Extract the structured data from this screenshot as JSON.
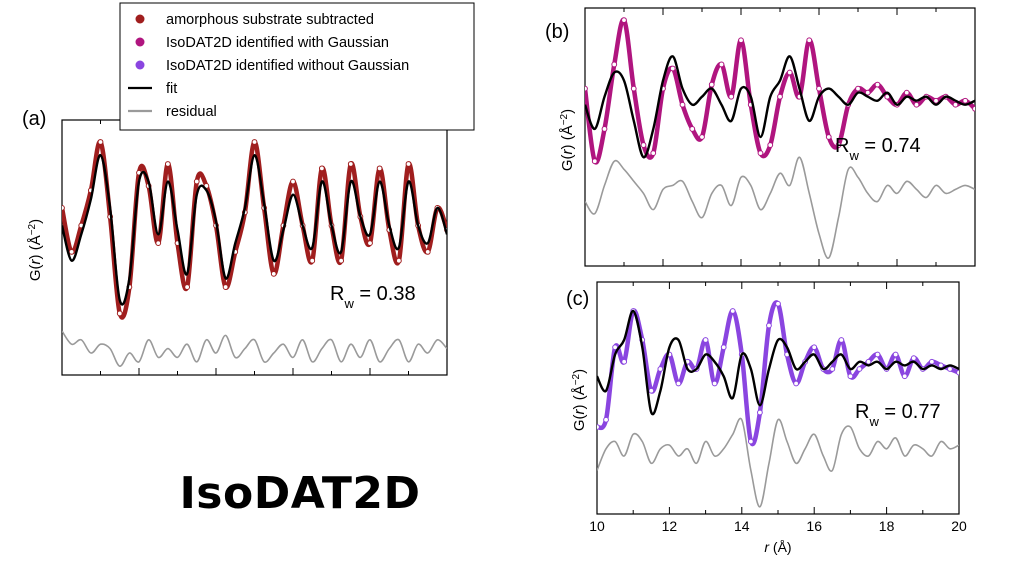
{
  "brand_title": "IsoDAT2D",
  "colors": {
    "substrate": "#a01e1e",
    "with_gaussian": "#b0157f",
    "without_gaussian": "#8a45e0",
    "fit": "#000000",
    "residual": "#9a9a9a"
  },
  "legend": {
    "placement": "top-left, above panel (a)",
    "items": [
      {
        "label": "amorphous substrate subtracted",
        "kind": "marker",
        "color": "#a01e1e"
      },
      {
        "label": "IsoDAT2D identified with Gaussian",
        "kind": "marker",
        "color": "#b0157f"
      },
      {
        "label": "IsoDAT2D identified without Gaussian",
        "kind": "marker",
        "color": "#8a45e0"
      },
      {
        "label": "fit",
        "kind": "line",
        "color": "#000000"
      },
      {
        "label": "residual",
        "kind": "line",
        "color": "#9a9a9a"
      }
    ]
  },
  "chart_data": [
    {
      "panel": "(a)",
      "type": "line",
      "title": "",
      "ylabel_parts": [
        "G(",
        "r",
        ") (Å",
        "−2",
        ")"
      ],
      "xlim": [
        10,
        20
      ],
      "ylim": [
        -1.6,
        1.3
      ],
      "rw_label": "R",
      "rw_sub": "w",
      "rw_value": "= 0.38",
      "data_color": "#a01e1e",
      "x": [
        10.0,
        10.25,
        10.5,
        10.75,
        11.0,
        11.25,
        11.5,
        11.75,
        12.0,
        12.25,
        12.5,
        12.75,
        13.0,
        13.25,
        13.5,
        13.75,
        14.0,
        14.25,
        14.5,
        14.75,
        15.0,
        15.25,
        15.5,
        15.75,
        16.0,
        16.25,
        16.5,
        16.75,
        17.0,
        17.25,
        17.5,
        17.75,
        18.0,
        18.25,
        18.5,
        18.75,
        19.0,
        19.25,
        19.5,
        19.75,
        20.0
      ],
      "data": [
        0.3,
        -0.2,
        0.1,
        0.5,
        1.05,
        0.2,
        -0.9,
        -0.6,
        0.7,
        0.55,
        -0.1,
        0.8,
        -0.1,
        -0.6,
        0.6,
        0.55,
        0.1,
        -0.6,
        -0.2,
        0.25,
        1.05,
        0.3,
        -0.45,
        0.1,
        0.6,
        0.1,
        -0.3,
        0.75,
        0.1,
        -0.3,
        0.8,
        0.2,
        -0.1,
        0.75,
        0.05,
        -0.3,
        0.8,
        0.1,
        -0.2,
        0.3,
        0.05
      ],
      "fit": [
        0.1,
        -0.3,
        0.0,
        0.4,
        0.9,
        0.3,
        -0.75,
        -0.5,
        0.6,
        0.6,
        0.0,
        0.6,
        0.05,
        -0.45,
        0.45,
        0.5,
        0.15,
        -0.5,
        -0.1,
        0.3,
        0.9,
        0.35,
        -0.3,
        0.05,
        0.45,
        0.1,
        -0.15,
        0.6,
        0.1,
        -0.2,
        0.6,
        0.2,
        0.0,
        0.6,
        0.1,
        -0.15,
        0.6,
        0.1,
        -0.1,
        0.3,
        0.0
      ],
      "residual": [
        -1.1,
        -1.25,
        -1.2,
        -1.35,
        -1.25,
        -1.3,
        -1.5,
        -1.35,
        -1.45,
        -1.2,
        -1.4,
        -1.3,
        -1.4,
        -1.25,
        -1.45,
        -1.2,
        -1.35,
        -1.15,
        -1.4,
        -1.3,
        -1.2,
        -1.45,
        -1.35,
        -1.25,
        -1.4,
        -1.2,
        -1.45,
        -1.3,
        -1.2,
        -1.45,
        -1.25,
        -1.4,
        -1.2,
        -1.45,
        -1.3,
        -1.2,
        -1.45,
        -1.25,
        -1.35,
        -1.2,
        -1.3
      ],
      "show_xticklabels": false
    },
    {
      "panel": "(b)",
      "type": "line",
      "title": "",
      "ylabel_parts": [
        "G(",
        "r",
        ") (Å",
        "−2",
        ")"
      ],
      "xlim": [
        10,
        20
      ],
      "ylim": [
        -1.9,
        1.3
      ],
      "rw_label": "R",
      "rw_sub": "w",
      "rw_value": "= 0.74",
      "data_color": "#b0157f",
      "x": [
        10.0,
        10.25,
        10.5,
        10.75,
        11.0,
        11.25,
        11.5,
        11.75,
        12.0,
        12.25,
        12.5,
        12.75,
        13.0,
        13.25,
        13.5,
        13.75,
        14.0,
        14.25,
        14.5,
        14.75,
        15.0,
        15.25,
        15.5,
        15.75,
        16.0,
        16.25,
        16.5,
        16.75,
        17.0,
        17.25,
        17.5,
        17.75,
        18.0,
        18.25,
        18.5,
        18.75,
        19.0,
        19.25,
        19.5,
        19.75,
        20.0
      ],
      "data": [
        0.3,
        -0.6,
        -0.2,
        0.6,
        1.15,
        0.3,
        -0.4,
        -0.5,
        0.3,
        0.55,
        0.1,
        -0.2,
        -0.3,
        0.35,
        0.6,
        0.2,
        0.9,
        0.1,
        -0.5,
        -0.4,
        0.2,
        0.5,
        0.2,
        0.9,
        0.3,
        -0.3,
        -0.4,
        0.1,
        0.3,
        0.25,
        0.35,
        0.2,
        0.1,
        0.25,
        0.1,
        0.2,
        0.15,
        0.2,
        0.1,
        0.15,
        0.05
      ],
      "fit": [
        0.1,
        -0.2,
        0.2,
        0.5,
        0.4,
        -0.1,
        -0.55,
        -0.2,
        0.4,
        0.7,
        0.3,
        0.1,
        0.2,
        0.3,
        0.1,
        -0.1,
        0.3,
        0.2,
        -0.3,
        0.2,
        0.4,
        0.7,
        0.3,
        -0.1,
        0.2,
        0.3,
        0.2,
        0.1,
        0.25,
        0.2,
        0.15,
        0.25,
        0.1,
        0.2,
        0.15,
        0.2,
        0.1,
        0.2,
        0.15,
        0.1,
        0.15
      ],
      "residual": [
        -1.1,
        -1.25,
        -0.9,
        -0.6,
        -0.7,
        -0.85,
        -1.0,
        -1.2,
        -0.95,
        -0.9,
        -0.85,
        -1.1,
        -1.3,
        -1.0,
        -0.9,
        -1.15,
        -0.8,
        -0.9,
        -1.2,
        -1.0,
        -0.75,
        -0.9,
        -0.55,
        -1.0,
        -1.5,
        -1.8,
        -1.3,
        -0.7,
        -0.8,
        -1.0,
        -1.1,
        -0.9,
        -1.0,
        -0.85,
        -0.95,
        -1.05,
        -0.9,
        -1.0,
        -0.95,
        -0.9,
        -0.95
      ],
      "show_xticklabels": false
    },
    {
      "panel": "(c)",
      "type": "line",
      "title": "",
      "ylabel_parts": [
        "G(",
        "r",
        ") (Å",
        "−2",
        ")"
      ],
      "xlim": [
        10,
        20
      ],
      "ylim": [
        -1.9,
        1.3
      ],
      "xticks": [
        10,
        12,
        14,
        16,
        18,
        20
      ],
      "xlabel_parts": [
        "r",
        " (Å)"
      ],
      "rw_label": "R",
      "rw_sub": "w",
      "rw_value": "= 0.77",
      "data_color": "#8a45e0",
      "x": [
        10.0,
        10.25,
        10.5,
        10.75,
        11.0,
        11.25,
        11.5,
        11.75,
        12.0,
        12.25,
        12.5,
        12.75,
        13.0,
        13.25,
        13.5,
        13.75,
        14.0,
        14.25,
        14.5,
        14.75,
        15.0,
        15.25,
        15.5,
        15.75,
        16.0,
        16.25,
        16.5,
        16.75,
        17.0,
        17.25,
        17.5,
        17.75,
        18.0,
        18.25,
        18.5,
        18.75,
        19.0,
        19.25,
        19.5,
        19.75,
        20.0
      ],
      "data": [
        -0.7,
        -0.6,
        0.4,
        0.2,
        0.9,
        0.5,
        -0.2,
        0.1,
        0.3,
        -0.1,
        0.2,
        0.1,
        0.5,
        -0.1,
        0.4,
        0.9,
        0.3,
        -0.9,
        -0.5,
        0.7,
        1.0,
        0.3,
        -0.1,
        0.2,
        0.4,
        0.1,
        0.1,
        0.5,
        0.0,
        0.1,
        0.2,
        0.3,
        0.1,
        0.3,
        0.0,
        0.25,
        0.1,
        0.2,
        0.15,
        0.1,
        0.05
      ],
      "fit": [
        0.0,
        -0.2,
        0.3,
        0.5,
        0.9,
        0.4,
        -0.5,
        -0.2,
        0.4,
        0.5,
        0.1,
        0.1,
        0.3,
        0.2,
        0.0,
        -0.3,
        0.3,
        0.1,
        -0.4,
        0.1,
        0.5,
        0.4,
        0.1,
        0.2,
        0.3,
        0.1,
        0.2,
        0.3,
        0.1,
        0.2,
        0.15,
        0.2,
        0.1,
        0.2,
        0.15,
        0.2,
        0.1,
        0.15,
        0.1,
        0.15,
        0.1
      ],
      "residual": [
        -1.3,
        -1.0,
        -0.9,
        -1.1,
        -0.8,
        -0.9,
        -1.2,
        -1.0,
        -0.95,
        -1.1,
        -1.0,
        -1.2,
        -0.9,
        -1.1,
        -1.0,
        -0.8,
        -0.6,
        -1.3,
        -1.8,
        -1.2,
        -0.6,
        -0.9,
        -1.2,
        -1.0,
        -0.8,
        -1.1,
        -1.3,
        -0.8,
        -0.7,
        -1.0,
        -1.1,
        -0.9,
        -1.0,
        -0.85,
        -1.1,
        -0.95,
        -1.0,
        -1.1,
        -0.9,
        -1.0,
        -0.95
      ],
      "show_xticklabels": true
    }
  ]
}
